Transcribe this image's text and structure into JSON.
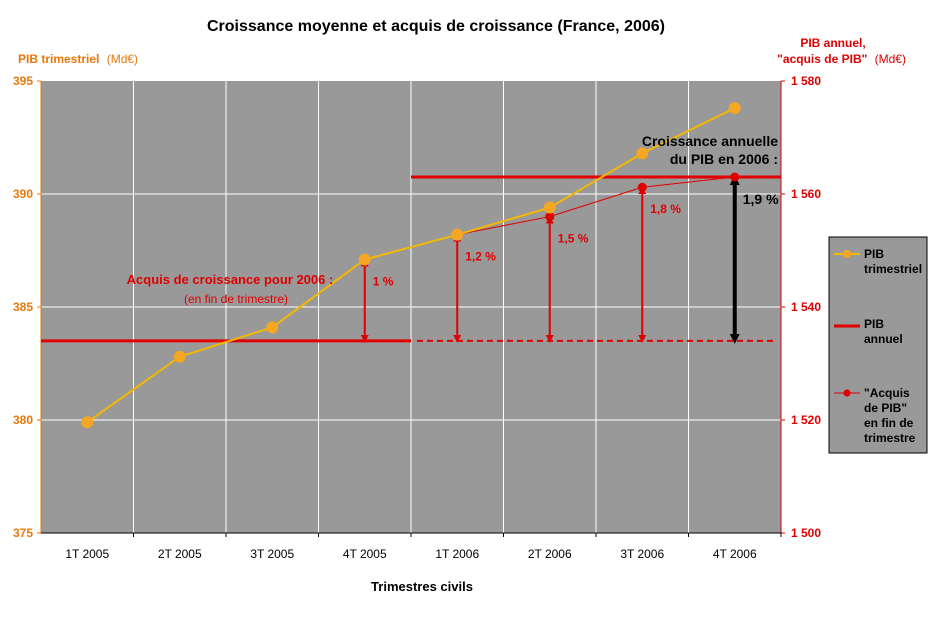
{
  "chart_data": {
    "type": "line",
    "title": "Croissance moyenne et acquis de croissance (France, 2006)",
    "xlabel": "Trimestres civils",
    "categories": [
      "1T 2005",
      "2T 2005",
      "3T 2005",
      "4T 2005",
      "1T 2006",
      "2T 2006",
      "3T 2006",
      "4T 2006"
    ],
    "left_axis": {
      "label_main": "PIB trimestriel",
      "label_unit": "(Md€)",
      "range": [
        375,
        395
      ],
      "ticks": [
        "375",
        "380",
        "385",
        "390",
        "395"
      ],
      "color": "#e8780a"
    },
    "right_axis": {
      "label_line1": "PIB annuel,",
      "label_main": "\"acquis de PIB\"",
      "label_unit": "(Md€)",
      "range": [
        1500,
        1580
      ],
      "ticks": [
        "1 500",
        "1 520",
        "1 540",
        "1 560",
        "1 580"
      ],
      "color": "#e00000"
    },
    "series": [
      {
        "name": "PIB trimestriel",
        "axis": "left",
        "color": "#f5b800",
        "marker_color": "#f5a623",
        "values": [
          379.9,
          382.8,
          384.1,
          387.1,
          388.2,
          389.4,
          391.8,
          393.8
        ]
      },
      {
        "name": "PIB annuel",
        "axis": "right",
        "color": "#e00000",
        "segments": [
          {
            "from_index": -0.5,
            "to_index": 3.5,
            "value": 1534
          },
          {
            "from_index": 3.5,
            "to_index": 7.5,
            "value": 1563
          }
        ],
        "projection": {
          "from_index": 3.5,
          "to_index": 7.5,
          "value": 1534
        }
      },
      {
        "name": "\"Acquis de PIB\" en fin de trimestre",
        "axis": "right",
        "color": "#e00000",
        "values": [
          null,
          null,
          null,
          1548.4,
          1552.8,
          1556.0,
          1561.2,
          1563.0
        ]
      }
    ],
    "annotations": {
      "acquis_title": "Acquis de croissance pour 2006 :",
      "acquis_subtitle": "(en fin de trimestre)",
      "growth_title_line1": "Croissance annuelle",
      "growth_title_line2": "du PIB en 2006 :",
      "arrows": [
        {
          "index": 3,
          "label": "1 %",
          "color": "#e00000"
        },
        {
          "index": 4,
          "label": "1,2 %",
          "color": "#e00000"
        },
        {
          "index": 5,
          "label": "1,5 %",
          "color": "#e00000"
        },
        {
          "index": 6,
          "label": "1,8 %",
          "color": "#e00000"
        },
        {
          "index": 7,
          "label": "1,9 %",
          "color": "#000000"
        }
      ]
    },
    "legend": {
      "placement": "right",
      "items": [
        {
          "line1": "PIB",
          "line2": "trimestriel",
          "line3": "",
          "line4": ""
        },
        {
          "line1": "PIB",
          "line2": "annuel",
          "line3": "",
          "line4": ""
        },
        {
          "line1": "\"Acquis",
          "line2": "de PIB\"",
          "line3": "en fin de",
          "line4": "trimestre"
        }
      ]
    },
    "plot_background": "#999999",
    "grid": true
  }
}
